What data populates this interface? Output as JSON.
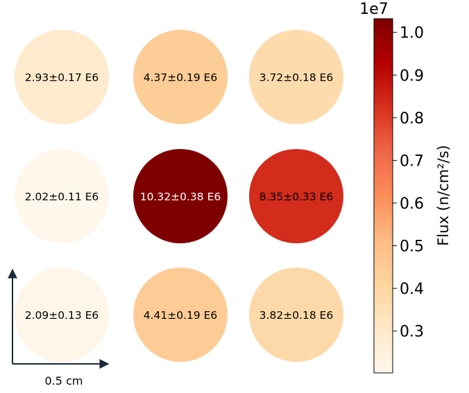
{
  "chart_data": {
    "type": "heatmap",
    "rows": 3,
    "cols": 3,
    "cells": [
      {
        "row": 0,
        "col": 0,
        "value": 2930000.0,
        "label": "2.93±0.17 E6"
      },
      {
        "row": 0,
        "col": 1,
        "value": 4370000.0,
        "label": "4.37±0.19 E6"
      },
      {
        "row": 0,
        "col": 2,
        "value": 3720000.0,
        "label": "3.72±0.18 E6"
      },
      {
        "row": 1,
        "col": 0,
        "value": 2020000.0,
        "label": "2.02±0.11 E6"
      },
      {
        "row": 1,
        "col": 1,
        "value": 10320000.0,
        "label": "10.32±0.38 E6"
      },
      {
        "row": 1,
        "col": 2,
        "value": 8350000.0,
        "label": "8.35±0.33 E6"
      },
      {
        "row": 2,
        "col": 0,
        "value": 2090000.0,
        "label": "2.09±0.13 E6"
      },
      {
        "row": 2,
        "col": 1,
        "value": 4410000.0,
        "label": "4.41±0.19 E6"
      },
      {
        "row": 2,
        "col": 2,
        "value": 3820000.0,
        "label": "3.82±0.18 E6"
      }
    ],
    "colorbar": {
      "label": "Flux (n/cm²/s)",
      "exponent_label": "1e7",
      "colormap": "OrRd",
      "vmin": 0.202,
      "vmax": 1.032,
      "ticks": [
        0.3,
        0.4,
        0.5,
        0.6,
        0.7,
        0.8,
        0.9,
        1.0
      ],
      "tick_labels": [
        "0.3",
        "0.4",
        "0.5",
        "0.6",
        "0.7",
        "0.8",
        "0.9",
        "1.0"
      ]
    },
    "scale_bar": {
      "label": "0.5 cm"
    },
    "colors": {
      "text_dark": "#000000",
      "text_light": "#ffffff",
      "arrow": "#1c2a3a"
    }
  }
}
